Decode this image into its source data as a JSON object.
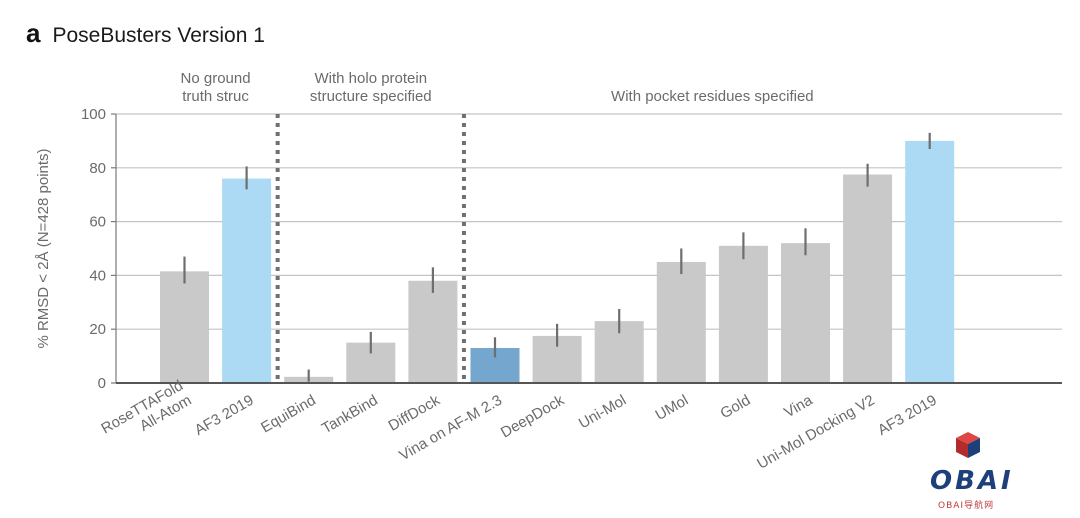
{
  "panel_letter": "a",
  "chart_data": {
    "type": "bar",
    "title": "PoseBusters Version 1",
    "ylabel": "% RMSD < 2Å (N=428 points)",
    "xlabel": "",
    "ylim": [
      0,
      100
    ],
    "yticks": [
      0,
      20,
      40,
      60,
      80,
      100
    ],
    "grid": true,
    "categories": [
      [
        "RoseTTAFold",
        "All-Atom"
      ],
      [
        "AF3 2019"
      ],
      [
        "EquiBind"
      ],
      [
        "TankBind"
      ],
      [
        "DiffDock"
      ],
      [
        "Vina on AF-M 2.3"
      ],
      [
        "DeepDock"
      ],
      [
        "Uni-Mol"
      ],
      [
        "UMol"
      ],
      [
        "Gold"
      ],
      [
        "Vina"
      ],
      [
        "Uni-Mol Docking V2"
      ],
      [
        "AF3 2019"
      ]
    ],
    "values": [
      41.5,
      76,
      2.3,
      15,
      38,
      13,
      17.5,
      23,
      45,
      51,
      52,
      77.5,
      90
    ],
    "error_low": [
      37,
      72,
      0.5,
      11,
      33.5,
      9.5,
      13.5,
      18.5,
      40.5,
      46,
      47.5,
      73,
      87
    ],
    "error_high": [
      47,
      80.5,
      5,
      19,
      43,
      17,
      22,
      27.5,
      50,
      56,
      57.5,
      81.5,
      93
    ],
    "bar_colors": [
      "#c9c9c9",
      "#acd9f4",
      "#c9c9c9",
      "#c9c9c9",
      "#c9c9c9",
      "#75a6cd",
      "#c9c9c9",
      "#c9c9c9",
      "#c9c9c9",
      "#c9c9c9",
      "#c9c9c9",
      "#c9c9c9",
      "#acd9f4"
    ],
    "groups": [
      {
        "label": [
          "No ground",
          "truth struc"
        ],
        "start": 0,
        "end": 1
      },
      {
        "label": [
          "With holo protein",
          "structure specified"
        ],
        "start": 2,
        "end": 4
      },
      {
        "label": [
          "With pocket residues specified"
        ],
        "start": 5,
        "end": 12
      }
    ]
  },
  "watermark": {
    "text": "OBAI",
    "subtext": "OBAI导航网"
  }
}
